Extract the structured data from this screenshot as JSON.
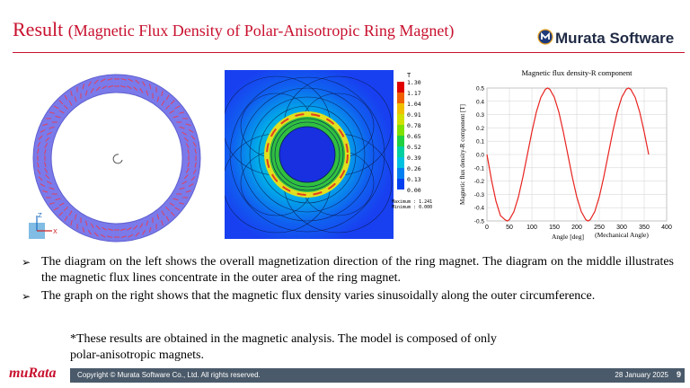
{
  "header": {
    "title_main": "Result",
    "title_sub": "(Magnetic Flux Density of Polar-Anisotropic Ring Magnet)",
    "logo": "Murata Software",
    "logo_icon": "murata-software-logo-icon"
  },
  "colorbar": {
    "unit": "T",
    "ticks": [
      "1.30",
      "1.17",
      "1.04",
      "0.91",
      "0.78",
      "0.65",
      "0.52",
      "0.39",
      "0.26",
      "0.13",
      "0.00"
    ],
    "maximum_label": "Maximum",
    "maximum_value": "1.241",
    "minimum_label": "Minimum",
    "minimum_value": "0.000"
  },
  "chart_data": {
    "type": "line",
    "title": "Magnetic flux  density-R component",
    "xlabel": "Angle [deg]",
    "xlabel_note": "(Mechanical Angle)",
    "ylabel": "Magnetic flux density-R component [T]",
    "xlim": [
      0,
      400
    ],
    "ylim": [
      -0.5,
      0.5
    ],
    "xticks": [
      0,
      50,
      100,
      150,
      200,
      250,
      300,
      350,
      400
    ],
    "yticks": [
      -0.5,
      -0.4,
      -0.3,
      -0.2,
      -0.1,
      0.0,
      0.1,
      0.2,
      0.3,
      0.4,
      0.5
    ],
    "grid": true,
    "series": [
      {
        "color": "#e8231f",
        "x": [
          0,
          10,
          20,
          30,
          40,
          45,
          50,
          60,
          70,
          80,
          90,
          100,
          110,
          120,
          130,
          135,
          140,
          150,
          160,
          170,
          180,
          190,
          200,
          210,
          220,
          225,
          230,
          240,
          250,
          260,
          270,
          280,
          290,
          300,
          310,
          315,
          320,
          330,
          340,
          350,
          360
        ],
        "y": [
          0.0,
          -0.19,
          -0.35,
          -0.46,
          -0.49,
          -0.5,
          -0.49,
          -0.43,
          -0.32,
          -0.17,
          0.0,
          0.17,
          0.32,
          0.43,
          0.49,
          0.5,
          0.49,
          0.43,
          0.32,
          0.17,
          0.0,
          -0.17,
          -0.32,
          -0.43,
          -0.49,
          -0.5,
          -0.49,
          -0.43,
          -0.32,
          -0.17,
          0.0,
          0.17,
          0.32,
          0.43,
          0.49,
          0.5,
          0.49,
          0.43,
          0.32,
          0.17,
          0.0
        ]
      }
    ]
  },
  "axis_indicator": {
    "z": "Z",
    "x": "X"
  },
  "bullets": [
    "The diagram on the left shows the overall magnetization direction of the ring magnet. The diagram on the middle illustrates the magnetic flux lines concentrate in the outer area of the ring magnet.",
    "The graph on the right shows that the magnetic flux density varies sinusoidally along the outer circumference."
  ],
  "bullet_marker": "➢",
  "note_line1": "*These results are obtained in the magnetic analysis. The model is composed of only",
  "note_line2": "polar-anisotropic magnets.",
  "footer": {
    "brand": "muRata",
    "copyright": "Copyright © Murata Software Co., Ltd. All rights reserved.",
    "date": "28 January 2025",
    "page": "9"
  }
}
